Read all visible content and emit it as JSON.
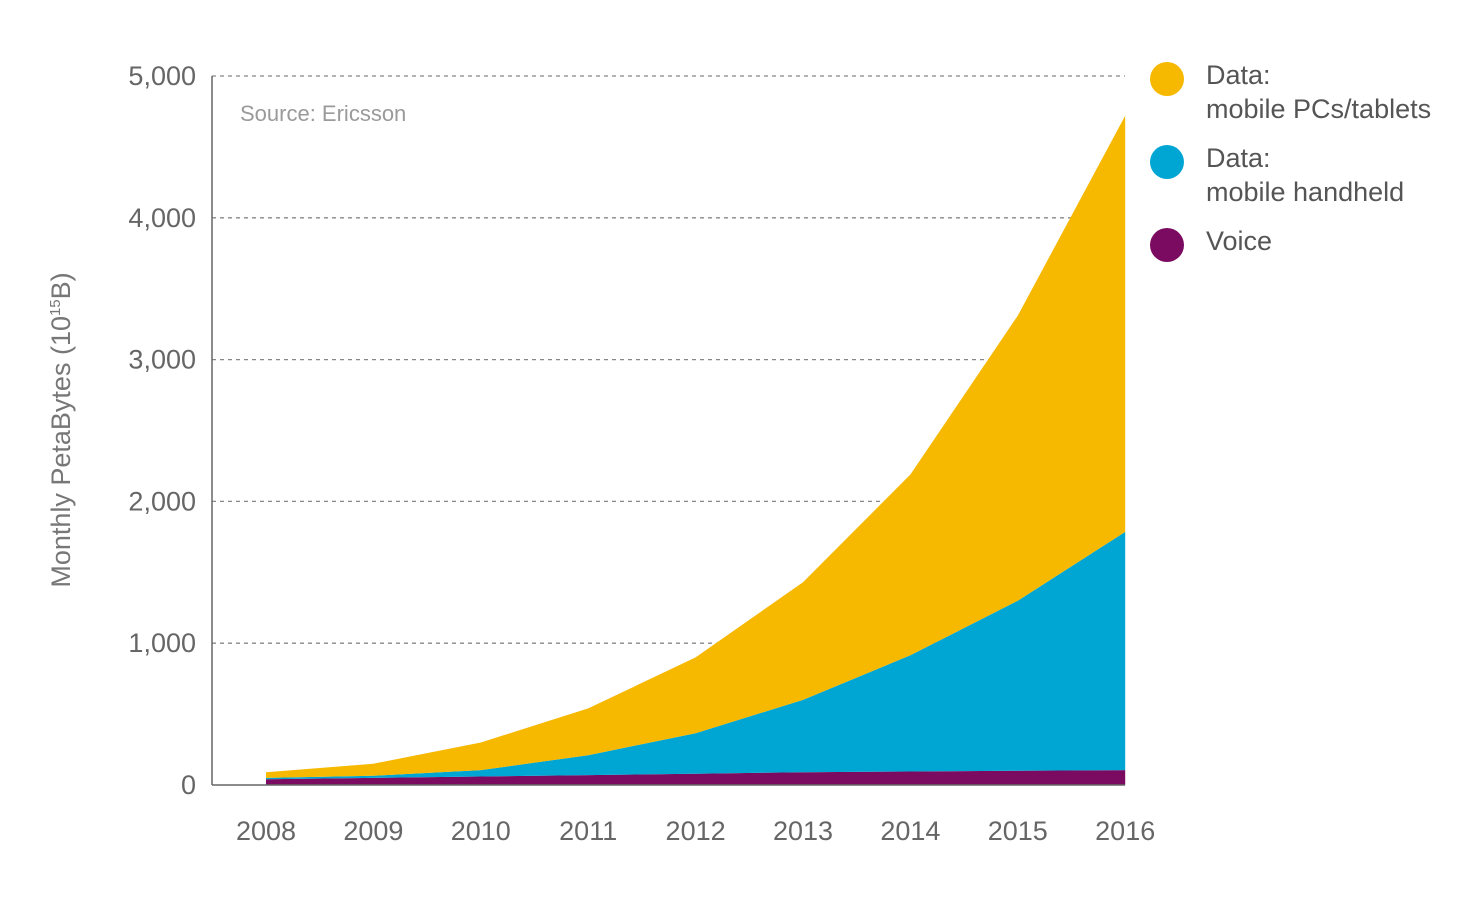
{
  "chart_data": {
    "type": "area",
    "stacked": true,
    "x": [
      "2008",
      "2009",
      "2010",
      "2011",
      "2012",
      "2013",
      "2014",
      "2015",
      "2016"
    ],
    "series": [
      {
        "name": "Voice",
        "color": "#7b0a61",
        "values": [
          40,
          50,
          60,
          70,
          80,
          90,
          95,
          100,
          105
        ]
      },
      {
        "name": "Data: mobile handheld",
        "color": "#00a6d3",
        "values": [
          10,
          15,
          45,
          140,
          285,
          510,
          820,
          1200,
          1680
        ]
      },
      {
        "name": "Data: mobile PCs/tablets",
        "color": "#f7b800",
        "values": [
          40,
          85,
          195,
          330,
          535,
          830,
          1275,
          2010,
          2935
        ]
      }
    ],
    "ylabel": "Monthly PetaBytes (10¹⁵B)",
    "ylabel_parts": {
      "main": "Monthly PetaBytes (10",
      "sup": "15",
      "end": "B)"
    },
    "ylim": [
      0,
      5000
    ],
    "yticks": [
      "0",
      "1,000",
      "2,000",
      "3,000",
      "4,000",
      "5,000"
    ],
    "ytick_values": [
      0,
      1000,
      2000,
      3000,
      4000,
      5000
    ],
    "grid": true,
    "legend_position": "right",
    "annotation": "Source: Ericsson"
  },
  "legend": [
    {
      "line1": "Data:",
      "line2": "mobile PCs/tablets",
      "color": "#f7b800"
    },
    {
      "line1": "Data:",
      "line2": "mobile handheld",
      "color": "#00a6d3"
    },
    {
      "line1": "Voice",
      "line2": "",
      "color": "#7b0a61"
    }
  ]
}
